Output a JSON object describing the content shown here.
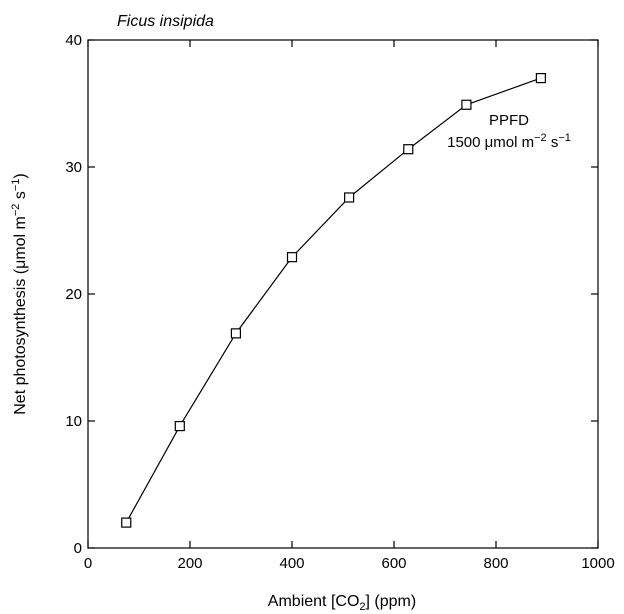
{
  "chart_data": {
    "type": "line",
    "title": "Ficus insipida",
    "xlabel": {
      "main": "Ambient [CO",
      "sub": "2",
      "tail": "] (ppm)"
    },
    "ylabel": {
      "main": "Net photosynthesis (μmol m",
      "sup1": "−2",
      "mid": " s",
      "sup2": "−1",
      "tail": ")"
    },
    "xlim": [
      0,
      1000
    ],
    "ylim": [
      0,
      40
    ],
    "xticks": [
      0,
      200,
      400,
      600,
      800,
      1000
    ],
    "yticks": [
      0,
      10,
      20,
      30,
      40
    ],
    "grid": false,
    "marker": "open-square",
    "series": [
      {
        "x": [
          75,
          180,
          290,
          400,
          512,
          628,
          742,
          888
        ],
        "y": [
          2.0,
          9.6,
          16.9,
          22.9,
          27.6,
          31.4,
          34.9,
          37.0
        ]
      }
    ],
    "annotation": {
      "line1": "PPFD",
      "line2": {
        "main": "1500 μmol m",
        "sup1": "−2",
        "mid": " s",
        "sup2": "−1"
      }
    }
  }
}
